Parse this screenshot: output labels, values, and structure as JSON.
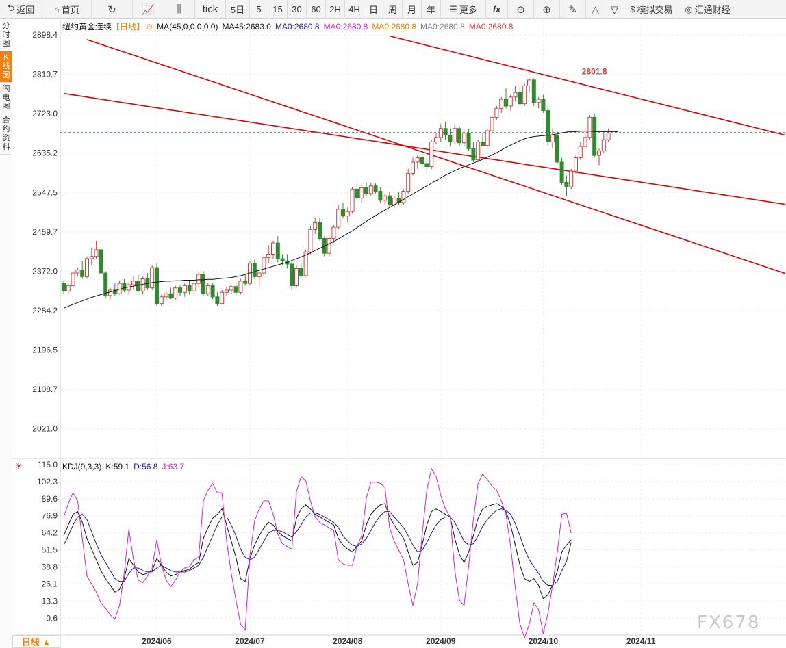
{
  "toolbar": {
    "back": "返回",
    "home": "首页",
    "tick": "tick",
    "periods": [
      "5日",
      "5",
      "15",
      "30",
      "60",
      "2H",
      "4H",
      "日",
      "周",
      "月",
      "年"
    ],
    "more": "更多",
    "fx": "fx",
    "sim_trade": "模拟交易",
    "brand": "汇通财经"
  },
  "side_tabs": [
    "分时图",
    "K线图",
    "闪电图",
    "合约资料"
  ],
  "active_side_tab": 1,
  "legend": {
    "symbol": "纽约黄金连续",
    "period": "【日线】",
    "ma_params": "MA(45,0,0,0,0,0)",
    "ma45": "MA45:2683.0",
    "ma_extra": [
      "MA0:2680.8",
      "MA0:2680.8",
      "MA0:2680.8",
      "MA0:2680.8",
      "MA0:2680.8"
    ]
  },
  "kdj_legend": {
    "name": "KDJ(9,3,3)",
    "k": "K:59.1",
    "d": "D:56.8",
    "j": "J:63.7"
  },
  "period_button": "日线 ▲",
  "watermark": "FX678",
  "colors": {
    "up": "#d04040",
    "down": "#2e8b2e",
    "ma45": "#111111",
    "channel": "#e00000",
    "price_line": "#2a6ab0",
    "kdj_k": "#111111",
    "kdj_d": "#1a1a9e",
    "kdj_j": "#d020d0",
    "ma_extra": [
      "#1a1aa0",
      "#d020d0",
      "#e08000",
      "#888888",
      "#d04040"
    ],
    "accent": "#f08010"
  },
  "chart_data": [
    {
      "type": "candlestick",
      "title": "纽约黄金连续",
      "y_ticks": [
        2898.4,
        2810.7,
        2723.0,
        2635.2,
        2547.5,
        2459.7,
        2372.0,
        2284.2,
        2196.5,
        2108.7,
        2021.0
      ],
      "ylim": [
        1955,
        2932
      ],
      "x_ticks": [
        "2024/06",
        "2024/07",
        "2024/08",
        "2024/09",
        "2024/10",
        "2024/11"
      ],
      "x_tick_index": [
        20,
        40,
        61,
        81,
        103,
        124
      ],
      "current_price": 2680.8,
      "high_label": {
        "index": 111,
        "value": 2801.8,
        "text": "2801.8"
      },
      "ohlc": [
        [
          2345,
          2350,
          2322,
          2328
        ],
        [
          2328,
          2345,
          2320,
          2340
        ],
        [
          2340,
          2372,
          2335,
          2368
        ],
        [
          2368,
          2380,
          2360,
          2375
        ],
        [
          2375,
          2395,
          2355,
          2360
        ],
        [
          2360,
          2405,
          2355,
          2400
        ],
        [
          2400,
          2425,
          2385,
          2405
        ],
        [
          2405,
          2440,
          2400,
          2420
        ],
        [
          2420,
          2425,
          2360,
          2368
        ],
        [
          2368,
          2372,
          2312,
          2318
        ],
        [
          2318,
          2335,
          2310,
          2330
        ],
        [
          2330,
          2345,
          2318,
          2322
        ],
        [
          2322,
          2350,
          2320,
          2345
        ],
        [
          2345,
          2355,
          2325,
          2330
        ],
        [
          2330,
          2348,
          2320,
          2342
        ],
        [
          2342,
          2360,
          2330,
          2350
        ],
        [
          2350,
          2365,
          2325,
          2328
        ],
        [
          2328,
          2360,
          2322,
          2355
        ],
        [
          2355,
          2368,
          2330,
          2335
        ],
        [
          2335,
          2385,
          2330,
          2380
        ],
        [
          2380,
          2390,
          2295,
          2300
        ],
        [
          2300,
          2320,
          2295,
          2315
        ],
        [
          2315,
          2330,
          2305,
          2322
        ],
        [
          2322,
          2335,
          2310,
          2312
        ],
        [
          2312,
          2340,
          2308,
          2335
        ],
        [
          2335,
          2340,
          2318,
          2325
        ],
        [
          2325,
          2345,
          2315,
          2340
        ],
        [
          2340,
          2352,
          2320,
          2328
        ],
        [
          2328,
          2350,
          2322,
          2345
        ],
        [
          2345,
          2370,
          2335,
          2365
        ],
        [
          2365,
          2372,
          2318,
          2322
        ],
        [
          2322,
          2345,
          2318,
          2340
        ],
        [
          2340,
          2345,
          2310,
          2315
        ],
        [
          2315,
          2325,
          2295,
          2300
        ],
        [
          2300,
          2330,
          2298,
          2325
        ],
        [
          2325,
          2338,
          2318,
          2330
        ],
        [
          2330,
          2342,
          2322,
          2338
        ],
        [
          2338,
          2345,
          2320,
          2325
        ],
        [
          2325,
          2355,
          2320,
          2350
        ],
        [
          2350,
          2365,
          2340,
          2345
        ],
        [
          2345,
          2395,
          2340,
          2390
        ],
        [
          2390,
          2398,
          2355,
          2360
        ],
        [
          2360,
          2372,
          2340,
          2368
        ],
        [
          2368,
          2410,
          2362,
          2402
        ],
        [
          2402,
          2430,
          2390,
          2410
        ],
        [
          2410,
          2440,
          2400,
          2435
        ],
        [
          2435,
          2450,
          2392,
          2400
        ],
        [
          2400,
          2410,
          2385,
          2395
        ],
        [
          2395,
          2410,
          2378,
          2388
        ],
        [
          2388,
          2395,
          2330,
          2340
        ],
        [
          2340,
          2385,
          2335,
          2378
        ],
        [
          2378,
          2390,
          2358,
          2362
        ],
        [
          2362,
          2420,
          2360,
          2415
        ],
        [
          2415,
          2472,
          2410,
          2465
        ],
        [
          2465,
          2490,
          2455,
          2480
        ],
        [
          2480,
          2490,
          2440,
          2445
        ],
        [
          2445,
          2450,
          2405,
          2412
        ],
        [
          2412,
          2450,
          2405,
          2445
        ],
        [
          2445,
          2475,
          2435,
          2470
        ],
        [
          2470,
          2520,
          2465,
          2510
        ],
        [
          2510,
          2525,
          2490,
          2495
        ],
        [
          2495,
          2515,
          2480,
          2505
        ],
        [
          2505,
          2560,
          2500,
          2555
        ],
        [
          2555,
          2575,
          2530,
          2535
        ],
        [
          2535,
          2565,
          2525,
          2558
        ],
        [
          2558,
          2570,
          2540,
          2545
        ],
        [
          2545,
          2570,
          2540,
          2562
        ],
        [
          2562,
          2568,
          2545,
          2550
        ],
        [
          2550,
          2560,
          2525,
          2530
        ],
        [
          2530,
          2545,
          2520,
          2540
        ],
        [
          2540,
          2548,
          2515,
          2520
        ],
        [
          2520,
          2540,
          2512,
          2535
        ],
        [
          2535,
          2548,
          2520,
          2525
        ],
        [
          2525,
          2555,
          2520,
          2550
        ],
        [
          2550,
          2600,
          2545,
          2590
        ],
        [
          2590,
          2625,
          2585,
          2615
        ],
        [
          2615,
          2630,
          2600,
          2625
        ],
        [
          2625,
          2640,
          2605,
          2612
        ],
        [
          2612,
          2625,
          2590,
          2605
        ],
        [
          2605,
          2665,
          2600,
          2660
        ],
        [
          2660,
          2680,
          2655,
          2670
        ],
        [
          2670,
          2700,
          2660,
          2690
        ],
        [
          2690,
          2705,
          2665,
          2675
        ],
        [
          2675,
          2690,
          2650,
          2660
        ],
        [
          2660,
          2700,
          2655,
          2690
        ],
        [
          2690,
          2695,
          2650,
          2658
        ],
        [
          2658,
          2685,
          2650,
          2680
        ],
        [
          2680,
          2690,
          2640,
          2645
        ],
        [
          2645,
          2660,
          2615,
          2620
        ],
        [
          2620,
          2665,
          2615,
          2660
        ],
        [
          2660,
          2680,
          2650,
          2652
        ],
        [
          2652,
          2690,
          2648,
          2685
        ],
        [
          2685,
          2720,
          2680,
          2715
        ],
        [
          2715,
          2740,
          2710,
          2735
        ],
        [
          2735,
          2760,
          2725,
          2755
        ],
        [
          2755,
          2780,
          2735,
          2740
        ],
        [
          2740,
          2765,
          2730,
          2760
        ],
        [
          2760,
          2785,
          2750,
          2770
        ],
        [
          2770,
          2780,
          2740,
          2745
        ],
        [
          2745,
          2790,
          2740,
          2785
        ],
        [
          2785,
          2802,
          2770,
          2798
        ],
        [
          2798,
          2802,
          2740,
          2748
        ],
        [
          2748,
          2760,
          2735,
          2755
        ],
        [
          2755,
          2765,
          2725,
          2730
        ],
        [
          2730,
          2740,
          2650,
          2660
        ],
        [
          2660,
          2690,
          2645,
          2675
        ],
        [
          2675,
          2685,
          2610,
          2615
        ],
        [
          2615,
          2625,
          2565,
          2570
        ],
        [
          2570,
          2585,
          2540,
          2560
        ],
        [
          2560,
          2600,
          2555,
          2595
        ],
        [
          2595,
          2630,
          2590,
          2625
        ],
        [
          2625,
          2660,
          2620,
          2650
        ],
        [
          2650,
          2690,
          2645,
          2670
        ],
        [
          2670,
          2720,
          2665,
          2715
        ],
        [
          2715,
          2722,
          2625,
          2630
        ],
        [
          2630,
          2645,
          2608,
          2640
        ],
        [
          2640,
          2680,
          2635,
          2665
        ],
        [
          2665,
          2690,
          2660,
          2680
        ]
      ],
      "ma45": [
        2290,
        2294,
        2298,
        2302,
        2306,
        2310,
        2314,
        2317,
        2320,
        2323,
        2326,
        2329,
        2332,
        2335,
        2337,
        2339,
        2341,
        2343,
        2345,
        2347,
        2348,
        2349,
        2350,
        2350,
        2351,
        2351,
        2352,
        2352,
        2352,
        2353,
        2353,
        2354,
        2354,
        2355,
        2356,
        2357,
        2358,
        2360,
        2362,
        2365,
        2368,
        2371,
        2374,
        2377,
        2380,
        2383,
        2386,
        2389,
        2392,
        2396,
        2400,
        2404,
        2408,
        2413,
        2418,
        2423,
        2428,
        2433,
        2438,
        2444,
        2450,
        2456,
        2462,
        2469,
        2476,
        2483,
        2490,
        2496,
        2502,
        2508,
        2514,
        2520,
        2526,
        2532,
        2538,
        2544,
        2550,
        2556,
        2562,
        2568,
        2574,
        2580,
        2586,
        2591,
        2596,
        2601,
        2605,
        2609,
        2613,
        2617,
        2621,
        2626,
        2631,
        2636,
        2642,
        2648,
        2653,
        2658,
        2663,
        2667,
        2670,
        2672,
        2673,
        2674,
        2675,
        2676,
        2678,
        2680,
        2682,
        2683,
        2683,
        2684,
        2684,
        2684,
        2683,
        2683,
        2683,
        2683,
        2683,
        2683
      ],
      "channel_lines": [
        {
          "from": [
            5,
            2888
          ],
          "to": [
            155,
            2367
          ]
        },
        {
          "from": [
            0,
            2768
          ],
          "to": [
            155,
            2521
          ]
        },
        {
          "from": [
            70,
            2896
          ],
          "to": [
            155,
            2675
          ]
        }
      ]
    },
    {
      "type": "line",
      "title": "KDJ(9,3,3)",
      "y_ticks": [
        115.0,
        102.3,
        89.6,
        76.9,
        64.2,
        51.5,
        38.8,
        26.1,
        13.3,
        0.6
      ],
      "ylim": [
        -12,
        115
      ],
      "series": [
        {
          "name": "K",
          "values": [
            62,
            70,
            78,
            80,
            72,
            60,
            52,
            44,
            36,
            30,
            25,
            20,
            22,
            30,
            45,
            40,
            35,
            33,
            34,
            36,
            45,
            40,
            35,
            32,
            33,
            35,
            36,
            37,
            40,
            42,
            60,
            68,
            75,
            78,
            82,
            70,
            58,
            46,
            30,
            28,
            45,
            55,
            62,
            68,
            72,
            70,
            65,
            62,
            60,
            58,
            75,
            82,
            85,
            82,
            78,
            76,
            74,
            72,
            70,
            60,
            55,
            52,
            50,
            54,
            58,
            70,
            78,
            82,
            85,
            86,
            76,
            70,
            65,
            60,
            50,
            40,
            42,
            55,
            70,
            80,
            82,
            80,
            78,
            76,
            60,
            48,
            42,
            50,
            62,
            75,
            82,
            84,
            85,
            86,
            84,
            80,
            70,
            55,
            40,
            30,
            28,
            30,
            25,
            15,
            18,
            25,
            35,
            50,
            55,
            59
          ]
        },
        {
          "name": "D",
          "values": [
            55,
            62,
            70,
            76,
            78,
            74,
            65,
            56,
            48,
            42,
            36,
            30,
            28,
            28,
            34,
            38,
            38,
            36,
            35,
            35,
            38,
            40,
            38,
            36,
            35,
            35,
            35,
            36,
            38,
            40,
            46,
            54,
            62,
            70,
            76,
            76,
            70,
            62,
            52,
            46,
            44,
            46,
            52,
            58,
            64,
            66,
            66,
            65,
            63,
            61,
            65,
            70,
            76,
            79,
            79,
            78,
            76,
            74,
            72,
            68,
            62,
            58,
            55,
            54,
            56,
            60,
            66,
            72,
            77,
            80,
            80,
            76,
            72,
            68,
            62,
            55,
            50,
            51,
            57,
            64,
            70,
            74,
            76,
            76,
            72,
            65,
            58,
            55,
            56,
            62,
            69,
            74,
            78,
            81,
            82,
            81,
            78,
            71,
            62,
            52,
            44,
            39,
            34,
            28,
            25,
            25,
            28,
            36,
            43,
            57
          ]
        },
        {
          "name": "J",
          "values": [
            76,
            86,
            94,
            88,
            60,
            32,
            26,
            20,
            12,
            8,
            3,
            0,
            10,
            34,
            67,
            44,
            29,
            27,
            32,
            38,
            59,
            40,
            29,
            24,
            29,
            35,
            38,
            39,
            44,
            46,
            88,
            96,
            101,
            94,
            94,
            58,
            34,
            14,
            -4,
            -8,
            47,
            73,
            82,
            88,
            88,
            78,
            63,
            56,
            54,
            52,
            95,
            106,
            103,
            88,
            76,
            72,
            70,
            68,
            66,
            44,
            41,
            40,
            40,
            54,
            62,
            90,
            102,
            102,
            101,
            98,
            68,
            58,
            51,
            44,
            26,
            10,
            26,
            63,
            96,
            112,
            106,
            92,
            82,
            76,
            36,
            14,
            10,
            40,
            74,
            101,
            108,
            104,
            99,
            96,
            88,
            78,
            54,
            23,
            -4,
            -14,
            -4,
            12,
            7,
            -11,
            4,
            25,
            49,
            78,
            79,
            64
          ]
        }
      ]
    }
  ]
}
